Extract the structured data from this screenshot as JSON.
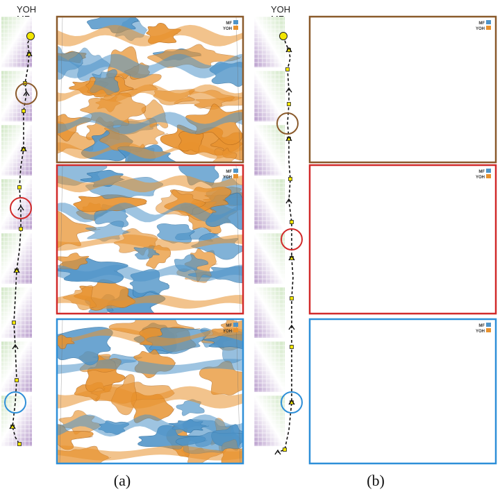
{
  "panels": [
    {
      "id": "a",
      "caption": "(a)",
      "strip_label_1": "YOH",
      "strip_label_2": "MF",
      "legend": {
        "mf": "MF",
        "yoh": "YOH"
      },
      "views": [
        {
          "frame_color": "#8a5a2b"
        },
        {
          "frame_color": "#d12a2a"
        },
        {
          "frame_color": "#2e8fd8"
        }
      ],
      "highlights": [
        {
          "color": "#8a5a2b"
        },
        {
          "color": "#d12a2a"
        },
        {
          "color": "#2e8fd8"
        }
      ]
    },
    {
      "id": "b",
      "caption": "(b)",
      "strip_label_1": "YOH",
      "strip_label_2": "MF",
      "legend": {
        "mf": "MF",
        "yoh": "YOH"
      },
      "views": [
        {
          "frame_color": "#8a5a2b"
        },
        {
          "frame_color": "#d12a2a"
        },
        {
          "frame_color": "#2e8fd8"
        }
      ],
      "highlights": [
        {
          "color": "#8a5a2b"
        },
        {
          "color": "#d12a2a"
        },
        {
          "color": "#2e8fd8"
        }
      ]
    }
  ],
  "colors": {
    "mf_surface": "#4f94c8",
    "yoh_surface": "#e8922e",
    "grid_purple": "#b89ccc",
    "grid_green": "#cfe6c3",
    "start_marker": "#f2e600"
  }
}
